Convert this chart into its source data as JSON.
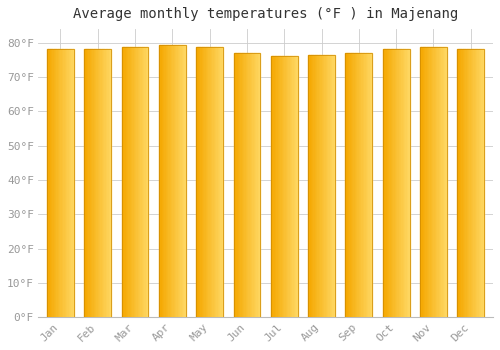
{
  "months": [
    "Jan",
    "Feb",
    "Mar",
    "Apr",
    "May",
    "Jun",
    "Jul",
    "Aug",
    "Sep",
    "Oct",
    "Nov",
    "Dec"
  ],
  "values": [
    78.1,
    78.1,
    78.8,
    79.3,
    78.8,
    77.0,
    76.1,
    76.5,
    77.0,
    78.1,
    78.8,
    78.1
  ],
  "bar_color_left": "#F5A800",
  "bar_color_right": "#FFD966",
  "background_color": "#FFFFFF",
  "grid_color": "#CCCCCC",
  "title": "Average monthly temperatures (°F ) in Majenang",
  "title_fontsize": 10,
  "ytick_labels": [
    "0°F",
    "10°F",
    "20°F",
    "30°F",
    "40°F",
    "50°F",
    "60°F",
    "70°F",
    "80°F"
  ],
  "yticks": [
    0,
    10,
    20,
    30,
    40,
    50,
    60,
    70,
    80
  ],
  "ylim": [
    0,
    84
  ],
  "font_color": "#999999",
  "title_color": "#333333",
  "bar_width": 0.72,
  "n_gradient_steps": 20
}
